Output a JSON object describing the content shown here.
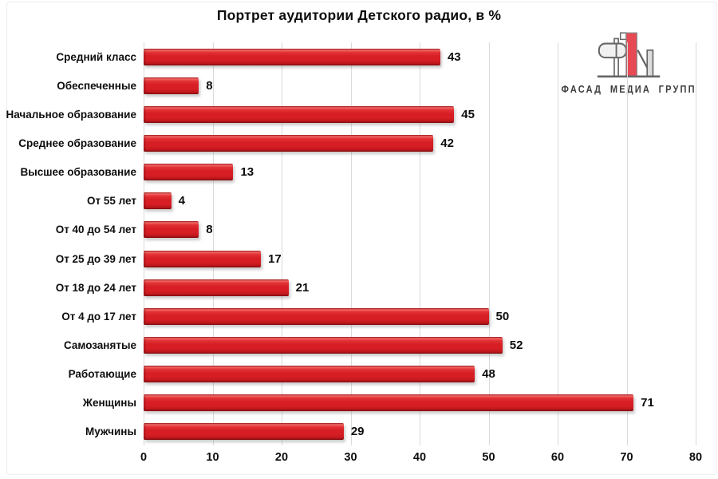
{
  "logo": {
    "text": "ФАСАД МЕДИА ГРУПП",
    "icon": "fm-building-logo-icon",
    "accent_color": "#e84a55",
    "outline_color": "#666666"
  },
  "chart_data": {
    "type": "bar",
    "orientation": "horizontal",
    "title": "Портрет аудитории Детского радио, в %",
    "categories": [
      "Средний класс",
      "Обеспеченные",
      "Начальное образование",
      "Среднее образование",
      "Высшее образование",
      "От 55 лет",
      "От 40 до 54 лет",
      "От 25 до 39 лет",
      "От 18 до 24 лет",
      "От 4 до 17 лет",
      "Самозанятые",
      "Работающие",
      "Женщины",
      "Мужчины"
    ],
    "values": [
      43,
      8,
      45,
      42,
      13,
      4,
      8,
      17,
      21,
      50,
      52,
      48,
      71,
      29
    ],
    "xlabel": "",
    "ylabel": "",
    "xlim": [
      0,
      80
    ],
    "x_ticks": [
      0,
      10,
      20,
      30,
      40,
      50,
      60,
      70,
      80
    ],
    "grid": "vertical-major",
    "legend": "none",
    "bar_color": "#d61e24",
    "gridline_color": "#dadada",
    "text_color": "#0d0d0d"
  }
}
